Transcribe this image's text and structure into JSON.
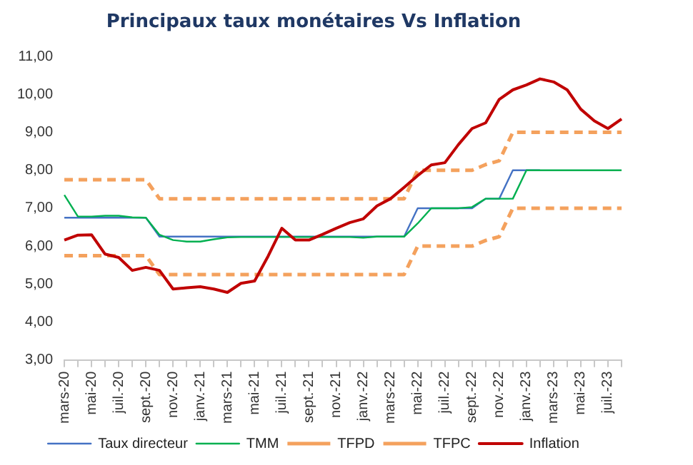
{
  "chart_data": {
    "type": "line",
    "title": "Principaux taux monétaires Vs Inflation",
    "categories": [
      "mars-20",
      null,
      "mai-20",
      null,
      "juil.-20",
      null,
      "sept.-20",
      null,
      "nov.-20",
      null,
      "janv.-21",
      null,
      "mars-21",
      null,
      "mai-21",
      null,
      "juil.-21",
      null,
      "sept.-21",
      null,
      "nov.-21",
      null,
      "janv.-22",
      null,
      "mars-22",
      null,
      "mai-22",
      null,
      "juil.-22",
      null,
      "sept.-22",
      null,
      "nov.-22",
      null,
      "janv.-23",
      null,
      "mars-23",
      null,
      "mai-23",
      null,
      "juil.-23",
      null
    ],
    "series": [
      {
        "name": "Taux directeur",
        "color": "#4472c4",
        "line_style": "solid",
        "values": [
          6.75,
          6.75,
          6.75,
          6.75,
          6.75,
          6.75,
          6.75,
          6.25,
          6.25,
          6.25,
          6.25,
          6.25,
          6.25,
          6.25,
          6.25,
          6.25,
          6.25,
          6.25,
          6.25,
          6.25,
          6.25,
          6.25,
          6.25,
          6.25,
          6.25,
          6.25,
          7.0,
          7.0,
          7.0,
          7.0,
          7.0,
          7.25,
          7.25,
          8.0,
          8.0,
          8.0,
          null,
          null,
          null,
          null,
          null,
          null
        ]
      },
      {
        "name": "TMM",
        "color": "#00b050",
        "line_style": "solid",
        "values": [
          7.35,
          6.78,
          6.78,
          6.8,
          6.8,
          6.76,
          6.75,
          6.3,
          6.16,
          6.12,
          6.12,
          6.18,
          6.23,
          6.24,
          6.24,
          6.24,
          6.24,
          6.24,
          6.24,
          6.24,
          6.24,
          6.24,
          6.22,
          6.25,
          6.25,
          6.25,
          6.6,
          7.0,
          7.0,
          7.0,
          7.03,
          7.25,
          7.25,
          7.25,
          8.0,
          8.0,
          8.0,
          8.0,
          8.0,
          8.0,
          8.0,
          8.0
        ]
      },
      {
        "name": "TFPD",
        "color": "#f4a15d",
        "line_style": "dashed",
        "values": [
          7.75,
          7.75,
          7.75,
          7.75,
          7.75,
          7.75,
          7.75,
          7.25,
          7.25,
          7.25,
          7.25,
          7.25,
          7.25,
          7.25,
          7.25,
          7.25,
          7.25,
          7.25,
          7.25,
          7.25,
          7.25,
          7.25,
          7.25,
          7.25,
          7.25,
          7.25,
          8.0,
          8.0,
          8.0,
          8.0,
          8.0,
          8.15,
          8.25,
          9.0,
          9.0,
          9.0,
          9.0,
          9.0,
          9.0,
          9.0,
          9.0,
          9.0
        ]
      },
      {
        "name": "TFPC",
        "color": "#f4a15d",
        "line_style": "dashed",
        "values": [
          5.75,
          5.75,
          5.75,
          5.75,
          5.75,
          5.75,
          5.75,
          5.25,
          5.25,
          5.25,
          5.25,
          5.25,
          5.25,
          5.25,
          5.25,
          5.25,
          5.25,
          5.25,
          5.25,
          5.25,
          5.25,
          5.25,
          5.25,
          5.25,
          5.25,
          5.25,
          6.0,
          6.0,
          6.0,
          6.0,
          6.0,
          6.15,
          6.25,
          7.0,
          7.0,
          7.0,
          7.0,
          7.0,
          7.0,
          7.0,
          7.0,
          7.0
        ]
      },
      {
        "name": "Inflation",
        "color": "#c00000",
        "line_style": "solid",
        "values": [
          6.16,
          6.29,
          6.3,
          5.79,
          5.7,
          5.36,
          5.44,
          5.36,
          4.87,
          4.9,
          4.93,
          4.87,
          4.78,
          5.02,
          5.08,
          5.74,
          6.47,
          6.16,
          6.16,
          6.31,
          6.47,
          6.62,
          6.72,
          7.06,
          7.25,
          7.55,
          7.86,
          8.14,
          8.2,
          8.68,
          9.1,
          9.25,
          9.87,
          10.12,
          10.25,
          10.41,
          10.33,
          10.12,
          9.61,
          9.3,
          9.1,
          9.35
        ]
      }
    ],
    "ylim": [
      3,
      11
    ],
    "yticks": [
      {
        "value": 3,
        "label": "3,00"
      },
      {
        "value": 4,
        "label": "4,00"
      },
      {
        "value": 5,
        "label": "5,00"
      },
      {
        "value": 6,
        "label": "6,00"
      },
      {
        "value": 7,
        "label": "7,00"
      },
      {
        "value": 8,
        "label": "8,00"
      },
      {
        "value": 9,
        "label": "9,00"
      },
      {
        "value": 10,
        "label": "10,00"
      },
      {
        "value": 11,
        "label": "11,00"
      }
    ],
    "grid": false,
    "legend": "bottom",
    "marker": "none"
  }
}
